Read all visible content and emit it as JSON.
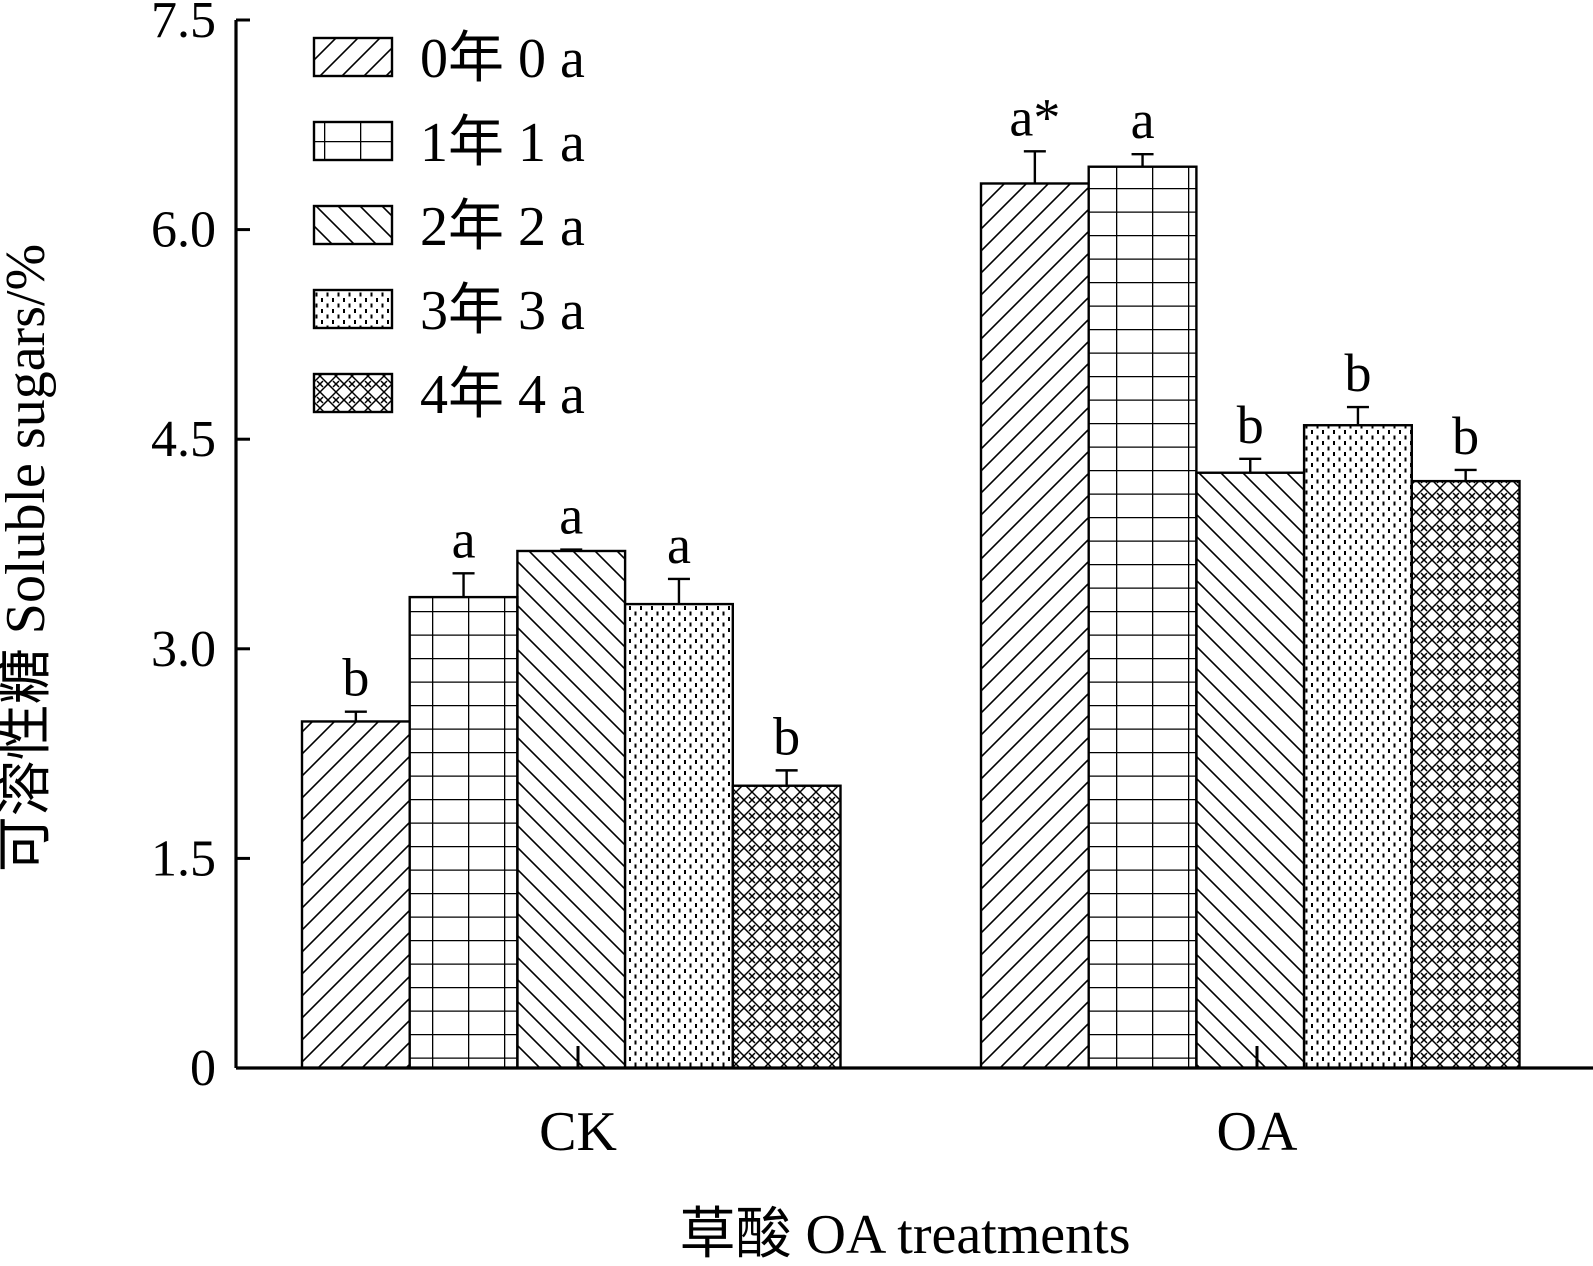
{
  "chart_data": {
    "type": "bar",
    "title": "",
    "xlabel": "草酸 OA treatments",
    "ylabel": "可溶性糖 Soluble sugars/%",
    "ylim": [
      0,
      7.5
    ],
    "yticks": [
      "0",
      "1.5",
      "3.0",
      "4.5",
      "6.0",
      "7.5"
    ],
    "categories": [
      "CK",
      "OA"
    ],
    "legend_position": "top-left",
    "grid": false,
    "series": [
      {
        "name": "0年 0 a",
        "values": [
          2.48,
          6.33
        ],
        "errors": [
          0.07,
          0.23
        ],
        "labels": [
          "b",
          "a*"
        ],
        "pattern": "diag-right"
      },
      {
        "name": "1年 1 a",
        "values": [
          3.37,
          6.45
        ],
        "errors": [
          0.17,
          0.09
        ],
        "labels": [
          "a",
          "a"
        ],
        "pattern": "grid"
      },
      {
        "name": "2年 2 a",
        "values": [
          3.7,
          4.26
        ],
        "errors": [
          0.01,
          0.1
        ],
        "labels": [
          "a",
          "b"
        ],
        "pattern": "diag-left"
      },
      {
        "name": "3年 3 a",
        "values": [
          3.32,
          4.6
        ],
        "errors": [
          0.18,
          0.13
        ],
        "labels": [
          "a",
          "b"
        ],
        "pattern": "dots"
      },
      {
        "name": "4年 4 a",
        "values": [
          2.02,
          4.2
        ],
        "errors": [
          0.11,
          0.08
        ],
        "labels": [
          "b",
          "b"
        ],
        "pattern": "crosshatch"
      }
    ]
  }
}
